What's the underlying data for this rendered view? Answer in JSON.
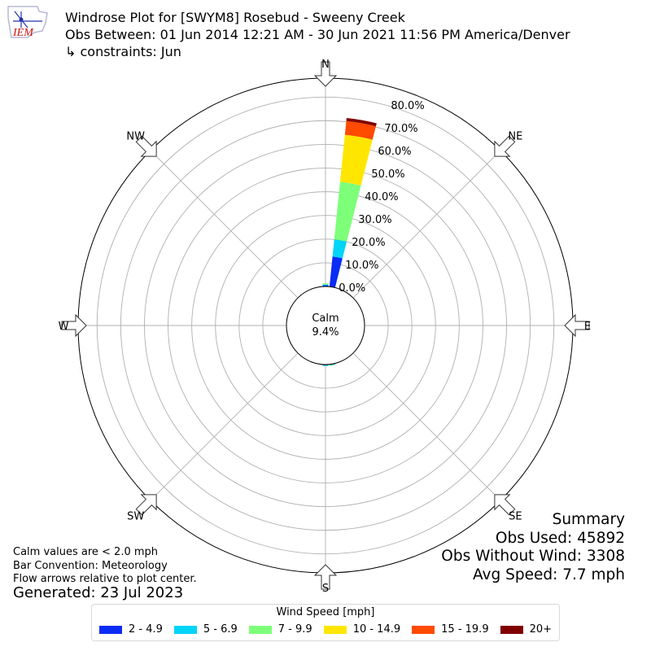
{
  "header": {
    "logo_text": "IEM",
    "title_line1": "Windrose Plot for [SWYM8] Rosebud - Sweeny Creek",
    "title_line2": "Obs Between: 01 Jun 2014 12:21 AM - 30 Jun 2021 11:56 PM America/Denver",
    "title_line3": "↳ constraints: Jun"
  },
  "notes": {
    "line1": "Calm values are < 2.0 mph",
    "line2": "Bar Convention: Meteorology",
    "line3": "Flow arrows relative to plot center.",
    "generated": "Generated: 23 Jul 2023"
  },
  "summary": {
    "title": "Summary",
    "obs_used": "Obs Used: 45892",
    "obs_without_wind": "Obs Without Wind: 3308",
    "avg_speed": "Avg Speed: 7.7 mph"
  },
  "calm": {
    "label": "Calm",
    "value": "9.4%"
  },
  "legend": {
    "title": "Wind Speed [mph]",
    "items": [
      {
        "label": "2 - 4.9",
        "color": "#0a2cf5"
      },
      {
        "label": "5 - 6.9",
        "color": "#00d4f7"
      },
      {
        "label": "7 - 9.9",
        "color": "#7dff7a"
      },
      {
        "label": "10 - 14.9",
        "color": "#ffe600"
      },
      {
        "label": "15 - 19.9",
        "color": "#ff4a00"
      },
      {
        "label": "20+",
        "color": "#800000"
      }
    ]
  },
  "chart_data": {
    "type": "windrose",
    "radial_tick_labels": [
      "0.0%",
      "10.0%",
      "20.0%",
      "30.0%",
      "40.0%",
      "50.0%",
      "60.0%",
      "70.0%",
      "80.0%"
    ],
    "radial_ticks": [
      0,
      10,
      20,
      30,
      40,
      50,
      60,
      70,
      80
    ],
    "radial_max": 88,
    "calm_percent": 9.4,
    "directions": [
      "N",
      "NE",
      "E",
      "SE",
      "S",
      "SW",
      "W",
      "NW"
    ],
    "direction_angles": [
      0,
      45,
      90,
      135,
      180,
      225,
      270,
      315
    ],
    "grid": true,
    "series_names": [
      "2 - 4.9",
      "5 - 6.9",
      "7 - 9.9",
      "10 - 14.9",
      "15 - 19.9",
      "20+"
    ],
    "bars": [
      {
        "direction_deg": 10,
        "values": [
          12.8,
          7.3,
          24.4,
          20.0,
          5.8,
          1.3
        ]
      },
      {
        "direction_deg": 0,
        "values": [
          0.5,
          0.3,
          0.5,
          0,
          0,
          0
        ]
      },
      {
        "direction_deg": 180,
        "values": [
          0.3,
          0.2,
          0.2,
          0,
          0,
          0
        ]
      },
      {
        "direction_deg": 170,
        "values": [
          0.2,
          0.2,
          0.3,
          0,
          0,
          0
        ]
      }
    ]
  }
}
